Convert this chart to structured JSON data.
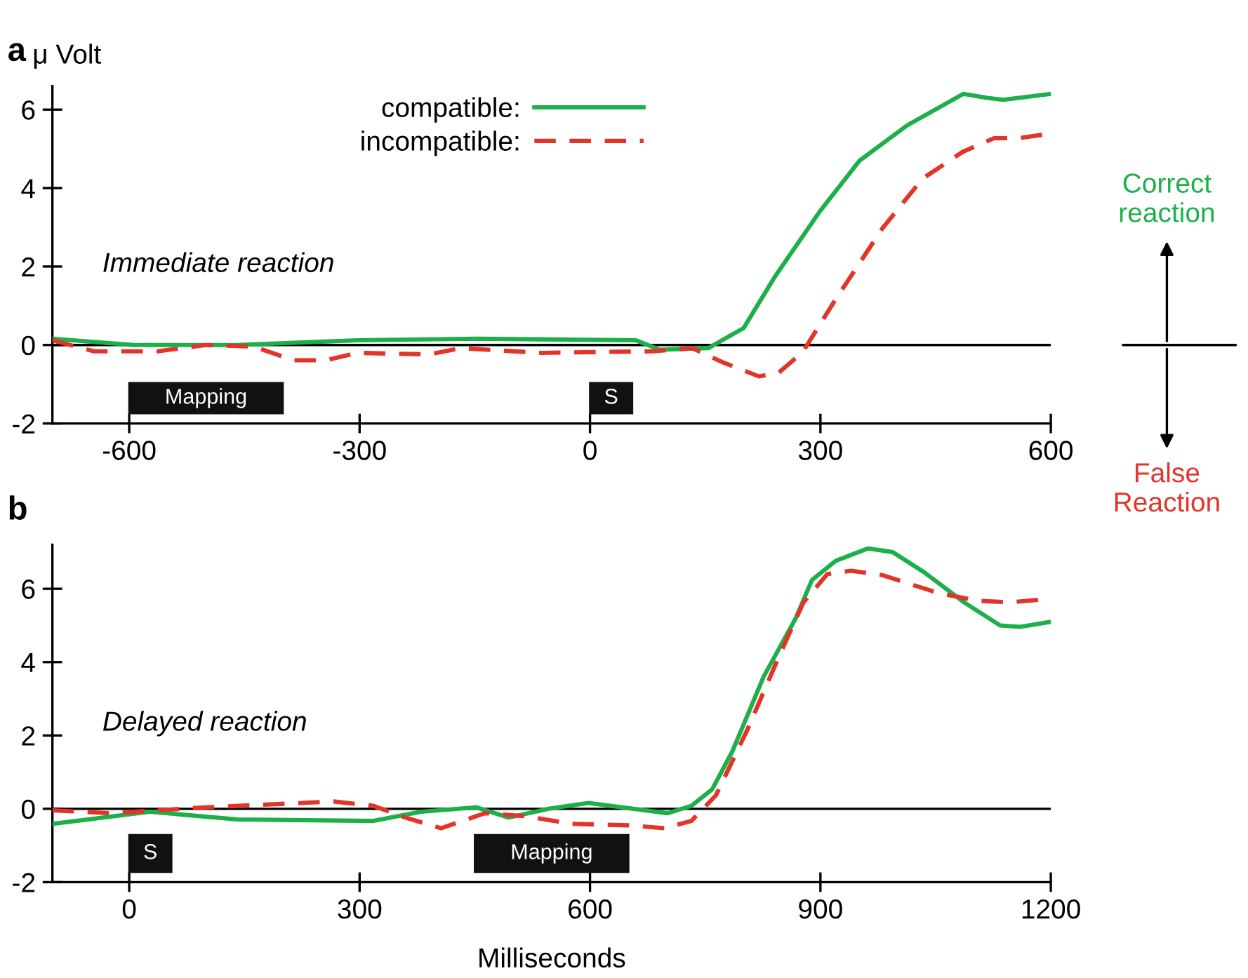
{
  "chart_data": [
    {
      "type": "line",
      "title": "a",
      "ylabel": "μ Volt",
      "xlim": [
        -700,
        600
      ],
      "xticks": [
        -600,
        -300,
        0,
        300,
        600
      ],
      "ylim": [
        -2,
        6.6
      ],
      "yticks": [
        -2,
        0,
        2,
        4,
        6
      ],
      "legend": "top",
      "grid": false,
      "ref_lines": [
        {
          "axis": "y",
          "value": 0,
          "color": "#000000"
        }
      ],
      "annotations": [
        "Immediate reaction",
        "Correct reaction",
        "False Reaction"
      ],
      "bands": [
        {
          "axis": "x",
          "from": -600,
          "to": -400,
          "label": "Mapping",
          "color": "#111111"
        },
        {
          "axis": "x",
          "from": 0,
          "to": 55,
          "label": "S",
          "color": "#111111"
        }
      ],
      "series": [
        {
          "name": "compatible:",
          "color": "#1db04a",
          "line_style": "solid",
          "x": [
            -700,
            -594,
            -460,
            -303,
            -147,
            60,
            91,
            154,
            200,
            241,
            299,
            351,
            413,
            486,
            517,
            538,
            600
          ],
          "values": [
            0.16,
            0,
            0,
            0.12,
            0.16,
            0.12,
            -0.12,
            -0.08,
            0.43,
            1.75,
            3.4,
            4.7,
            5.6,
            6.4,
            6.3,
            6.25,
            6.4
          ]
        },
        {
          "name": "incompatible:",
          "color": "#e3342a",
          "line_style": "dashed",
          "x": [
            -700,
            -646,
            -563,
            -500,
            -438,
            -386,
            -344,
            -303,
            -210,
            -168,
            -64,
            81,
            133,
            174,
            220,
            246,
            277,
            319,
            381,
            433,
            485,
            526,
            557,
            600
          ],
          "values": [
            0.12,
            -0.16,
            -0.16,
            0,
            -0.04,
            -0.39,
            -0.39,
            -0.2,
            -0.24,
            -0.08,
            -0.2,
            -0.16,
            -0.08,
            -0.45,
            -0.8,
            -0.7,
            -0.18,
            1.14,
            2.98,
            4.24,
            4.92,
            5.27,
            5.27,
            5.39
          ]
        }
      ]
    },
    {
      "type": "line",
      "title": "b",
      "xlabel": "Milliseconds",
      "xlim": [
        -100,
        1200
      ],
      "xticks": [
        0,
        300,
        600,
        900,
        1200
      ],
      "ylim": [
        -2,
        7.2
      ],
      "yticks": [
        -2,
        0,
        2,
        4,
        6
      ],
      "grid": false,
      "ref_lines": [
        {
          "axis": "y",
          "value": 0,
          "color": "#000000"
        }
      ],
      "annotations": [
        "Delayed reaction"
      ],
      "bands": [
        {
          "axis": "x",
          "from": 0,
          "to": 55,
          "label": "S",
          "color": "#111111"
        },
        {
          "axis": "x",
          "from": 450,
          "to": 650,
          "label": "Mapping",
          "color": "#111111"
        }
      ],
      "series": [
        {
          "color": "#1db04a",
          "line_style": "solid",
          "x": [
            -100,
            27,
            141,
            318,
            380,
            452,
            494,
            546,
            598,
            701,
            732,
            759,
            785,
            826,
            868,
            889,
            920,
            962,
            994,
            1035,
            1087,
            1134,
            1160,
            1200
          ],
          "values": [
            -0.41,
            -0.08,
            -0.29,
            -0.33,
            -0.08,
            0.04,
            -0.24,
            0,
            0.16,
            -0.12,
            0.08,
            0.53,
            1.55,
            3.6,
            5.2,
            6.24,
            6.76,
            7.1,
            7.0,
            6.45,
            5.63,
            5.0,
            4.96,
            5.1
          ]
        },
        {
          "color": "#e3342a",
          "line_style": "dashed",
          "x": [
            -100,
            -25,
            100,
            266,
            318,
            360,
            406,
            463,
            515,
            577,
            650,
            697,
            732,
            764,
            805,
            847,
            878,
            909,
            940,
            981,
            1054,
            1106,
            1147,
            1200
          ],
          "values": [
            -0.04,
            -0.12,
            0.04,
            0.2,
            0.08,
            -0.24,
            -0.53,
            -0.12,
            -0.2,
            -0.41,
            -0.45,
            -0.53,
            -0.33,
            0.37,
            2.16,
            4.2,
            5.63,
            6.4,
            6.49,
            6.37,
            5.88,
            5.67,
            5.63,
            5.73
          ]
        }
      ]
    }
  ]
}
